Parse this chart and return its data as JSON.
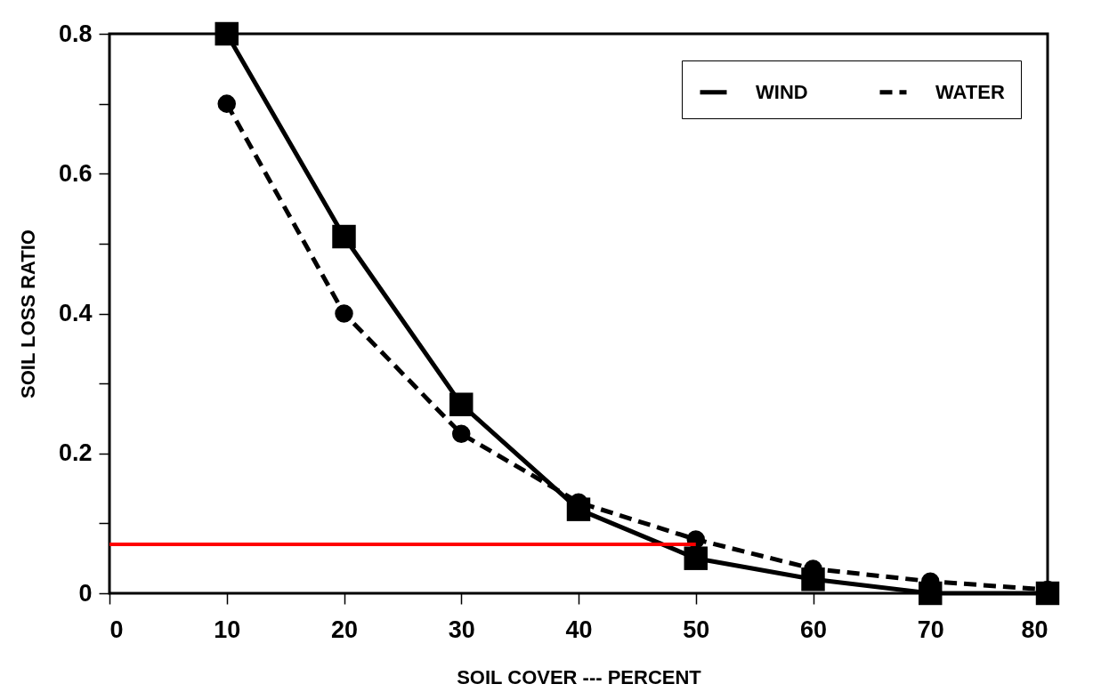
{
  "chart_data": {
    "type": "line",
    "xlabel": "SOIL COVER --- PERCENT",
    "ylabel": "SOIL LOSS RATIO",
    "x": [
      10,
      20,
      30,
      40,
      50,
      60,
      70,
      80
    ],
    "series": [
      {
        "name": "WIND",
        "color": "#000000",
        "marker": "square",
        "line_style": "solid",
        "values": [
          0.8,
          0.51,
          0.27,
          0.12,
          0.05,
          0.02,
          0,
          0
        ]
      },
      {
        "name": "WATER",
        "color": "#000000",
        "marker": "circle",
        "line_style": "dashed",
        "values": [
          0.7,
          0.4,
          0.228,
          0.13,
          0.077,
          0.035,
          0.017,
          0.005
        ]
      },
      {
        "color": "#ff0000",
        "marker": "none",
        "line_style": "solid",
        "x": [
          0,
          50
        ],
        "values": [
          0.07,
          0.07
        ]
      }
    ],
    "xlim": [
      0,
      80
    ],
    "xticks": [
      0,
      10,
      20,
      30,
      40,
      50,
      60,
      70,
      80
    ],
    "ylim": [
      0,
      0.8
    ],
    "yticks": [
      0,
      {
        "value": 0.1,
        "label": null
      },
      0.2,
      {
        "value": 0.3,
        "label": null
      },
      0.4,
      {
        "value": 0.5,
        "label": null
      },
      0.6,
      {
        "value": 0.7,
        "label": null
      },
      0.8
    ],
    "grid": false,
    "legend": "top right"
  }
}
